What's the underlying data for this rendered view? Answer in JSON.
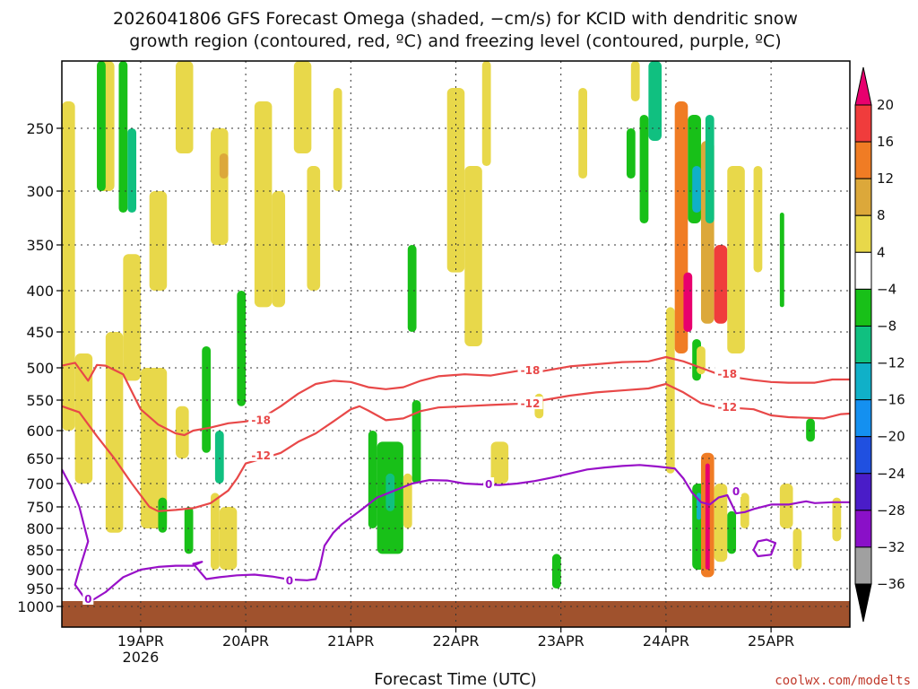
{
  "chart_data": {
    "type": "heatmap",
    "title_line1": "2026041806 GFS Forecast Omega (shaded, −cm/s) for KCID with dendritic snow",
    "title_line2": "growth region (contoured, red, ºC) and freezing level (contoured, purple, ºC)",
    "xlabel": "Forecast Time (UTC)",
    "credit": "coolwx.com/modelts",
    "x_ticks": [
      {
        "label": "19APR",
        "sub": "2026",
        "hour": 18
      },
      {
        "label": "20APR",
        "sub": "",
        "hour": 42
      },
      {
        "label": "21APR",
        "sub": "",
        "hour": 66
      },
      {
        "label": "22APR",
        "sub": "",
        "hour": 90
      },
      {
        "label": "23APR",
        "sub": "",
        "hour": 114
      },
      {
        "label": "24APR",
        "sub": "",
        "hour": 138
      },
      {
        "label": "25APR",
        "sub": "",
        "hour": 162
      }
    ],
    "x_range_hours": [
      0,
      180
    ],
    "y_ticks": [
      250,
      300,
      350,
      400,
      450,
      500,
      550,
      600,
      650,
      700,
      750,
      800,
      850,
      900,
      950,
      1000
    ],
    "y_range_hpa": [
      200,
      1000
    ],
    "colorbar_levels": [
      "20",
      "16",
      "12",
      "8",
      "4",
      "−4",
      "−8",
      "−12",
      "−16",
      "−20",
      "−24",
      "−28",
      "−32",
      "−36"
    ],
    "colorbar_colors": [
      "#e8006e",
      "#f03c3c",
      "#f07c24",
      "#dca83a",
      "#e8d84a",
      "#ffffff",
      "#18c018",
      "#10c080",
      "#10b0c8",
      "#1490f0",
      "#2050e0",
      "#4a1cc8",
      "#8a10c8",
      "#a0a0a0",
      "#000000"
    ],
    "contours": [
      {
        "name": "dgz_-18",
        "label": "-18",
        "color": "#e84848",
        "points": [
          [
            0,
            497
          ],
          [
            3,
            493
          ],
          [
            6,
            520
          ],
          [
            8,
            496
          ],
          [
            10,
            497
          ],
          [
            14,
            510
          ],
          [
            18,
            565
          ],
          [
            22,
            590
          ],
          [
            26,
            605
          ],
          [
            28,
            608
          ],
          [
            30,
            600
          ],
          [
            34,
            595
          ],
          [
            38,
            588
          ],
          [
            42,
            585
          ],
          [
            46,
            578
          ],
          [
            50,
            560
          ],
          [
            54,
            540
          ],
          [
            58,
            525
          ],
          [
            62,
            520
          ],
          [
            66,
            522
          ],
          [
            70,
            530
          ],
          [
            74,
            533
          ],
          [
            78,
            530
          ],
          [
            82,
            520
          ],
          [
            86,
            513
          ],
          [
            92,
            510
          ],
          [
            98,
            512
          ],
          [
            104,
            505
          ],
          [
            110,
            505
          ],
          [
            116,
            498
          ],
          [
            122,
            495
          ],
          [
            128,
            492
          ],
          [
            134,
            491
          ],
          [
            138,
            485
          ],
          [
            142,
            491
          ],
          [
            146,
            500
          ],
          [
            150,
            510
          ],
          [
            154,
            515
          ],
          [
            158,
            519
          ],
          [
            162,
            522
          ],
          [
            166,
            523
          ],
          [
            172,
            523
          ],
          [
            176,
            518
          ],
          [
            180,
            518
          ]
        ]
      },
      {
        "name": "dgz_-12",
        "label": "-12",
        "color": "#e84848",
        "points": [
          [
            0,
            560
          ],
          [
            4,
            570
          ],
          [
            8,
            610
          ],
          [
            12,
            650
          ],
          [
            16,
            700
          ],
          [
            20,
            750
          ],
          [
            22,
            760
          ],
          [
            26,
            757
          ],
          [
            30,
            753
          ],
          [
            34,
            742
          ],
          [
            38,
            715
          ],
          [
            40,
            690
          ],
          [
            42,
            660
          ],
          [
            46,
            650
          ],
          [
            50,
            640
          ],
          [
            54,
            620
          ],
          [
            58,
            605
          ],
          [
            62,
            585
          ],
          [
            66,
            565
          ],
          [
            68,
            560
          ],
          [
            70,
            567
          ],
          [
            74,
            583
          ],
          [
            78,
            580
          ],
          [
            82,
            568
          ],
          [
            86,
            562
          ],
          [
            92,
            560
          ],
          [
            98,
            558
          ],
          [
            104,
            556
          ],
          [
            110,
            550
          ],
          [
            116,
            543
          ],
          [
            122,
            538
          ],
          [
            128,
            535
          ],
          [
            134,
            532
          ],
          [
            138,
            525
          ],
          [
            142,
            538
          ],
          [
            146,
            555
          ],
          [
            150,
            562
          ],
          [
            154,
            563
          ],
          [
            158,
            565
          ],
          [
            162,
            575
          ],
          [
            166,
            578
          ],
          [
            170,
            579
          ],
          [
            174,
            580
          ],
          [
            178,
            573
          ],
          [
            180,
            572
          ]
        ]
      },
      {
        "name": "freezing_level_0",
        "label": "0",
        "color": "#9810c8",
        "points": [
          [
            0,
            672
          ],
          [
            2,
            705
          ],
          [
            4,
            750
          ],
          [
            6,
            830
          ],
          [
            4,
            900
          ],
          [
            3,
            940
          ],
          [
            6,
            990
          ],
          [
            10,
            960
          ],
          [
            14,
            920
          ],
          [
            18,
            900
          ],
          [
            22,
            893
          ],
          [
            26,
            890
          ],
          [
            30,
            890
          ],
          [
            32,
            880
          ],
          [
            30,
            885
          ],
          [
            33,
            925
          ],
          [
            36,
            920
          ],
          [
            40,
            915
          ],
          [
            44,
            913
          ],
          [
            48,
            918
          ],
          [
            52,
            926
          ],
          [
            56,
            928
          ],
          [
            58,
            925
          ],
          [
            59,
            890
          ],
          [
            60,
            840
          ],
          [
            62,
            810
          ],
          [
            64,
            790
          ],
          [
            68,
            760
          ],
          [
            72,
            730
          ],
          [
            76,
            715
          ],
          [
            80,
            700
          ],
          [
            84,
            693
          ],
          [
            88,
            694
          ],
          [
            92,
            700
          ],
          [
            96,
            702
          ],
          [
            100,
            703
          ],
          [
            104,
            700
          ],
          [
            108,
            695
          ],
          [
            112,
            688
          ],
          [
            116,
            680
          ],
          [
            120,
            672
          ],
          [
            124,
            668
          ],
          [
            128,
            665
          ],
          [
            132,
            663
          ],
          [
            136,
            666
          ],
          [
            140,
            670
          ],
          [
            142,
            690
          ],
          [
            144,
            720
          ],
          [
            146,
            740
          ],
          [
            148,
            745
          ],
          [
            150,
            730
          ],
          [
            152,
            725
          ],
          [
            154,
            765
          ],
          [
            156,
            762
          ],
          [
            158,
            755
          ],
          [
            162,
            745
          ],
          [
            166,
            745
          ],
          [
            170,
            738
          ],
          [
            172,
            742
          ],
          [
            176,
            740
          ],
          [
            180,
            740
          ]
        ]
      },
      {
        "name": "freezing_level_0_small",
        "label": "",
        "color": "#9810c8",
        "closed": true,
        "points": [
          [
            159,
            830
          ],
          [
            161,
            826
          ],
          [
            163,
            834
          ],
          [
            162,
            862
          ],
          [
            159,
            866
          ],
          [
            158,
            850
          ]
        ]
      }
    ],
    "contour_labels": [
      {
        "text": "-18",
        "color": "#e84848",
        "hour": 45.5,
        "hpa": 583
      },
      {
        "text": "-18",
        "color": "#e84848",
        "hour": 107,
        "hpa": 504
      },
      {
        "text": "-18",
        "color": "#e84848",
        "hour": 152,
        "hpa": 510
      },
      {
        "text": "-12",
        "color": "#e84848",
        "hour": 45.5,
        "hpa": 645
      },
      {
        "text": "-12",
        "color": "#e84848",
        "hour": 107,
        "hpa": 556
      },
      {
        "text": "-12",
        "color": "#e84848",
        "hour": 152,
        "hpa": 562
      },
      {
        "text": "0",
        "color": "#9810c8",
        "hour": 6,
        "hpa": 980
      },
      {
        "text": "0",
        "color": "#9810c8",
        "hour": 52,
        "hpa": 930
      },
      {
        "text": "0",
        "color": "#9810c8",
        "hour": 97.5,
        "hpa": 702
      },
      {
        "text": "0",
        "color": "#9810c8",
        "hour": 154,
        "hpa": 717
      }
    ],
    "omega_cells": [
      {
        "h0": 0,
        "h1": 3,
        "p0": 230,
        "p1": 600,
        "v": 6
      },
      {
        "h0": 3,
        "h1": 7,
        "p0": 480,
        "p1": 700,
        "v": 5
      },
      {
        "h0": 8,
        "h1": 12,
        "p0": 200,
        "p1": 300,
        "v": 5
      },
      {
        "h0": 8,
        "h1": 10,
        "p0": 200,
        "p1": 300,
        "v": -6
      },
      {
        "h0": 10,
        "h1": 14,
        "p0": 450,
        "p1": 810,
        "v": 5
      },
      {
        "h0": 13,
        "h1": 15,
        "p0": 200,
        "p1": 320,
        "v": -6
      },
      {
        "h0": 15,
        "h1": 17,
        "p0": 250,
        "p1": 320,
        "v": -10
      },
      {
        "h0": 14,
        "h1": 18,
        "p0": 360,
        "p1": 520,
        "v": 5
      },
      {
        "h0": 18,
        "h1": 24,
        "p0": 500,
        "p1": 800,
        "v": 5
      },
      {
        "h0": 22,
        "h1": 24,
        "p0": 730,
        "p1": 810,
        "v": -6
      },
      {
        "h0": 20,
        "h1": 24,
        "p0": 300,
        "p1": 400,
        "v": 5
      },
      {
        "h0": 26,
        "h1": 30,
        "p0": 200,
        "p1": 270,
        "v": 5
      },
      {
        "h0": 26,
        "h1": 29,
        "p0": 560,
        "p1": 650,
        "v": 5
      },
      {
        "h0": 28,
        "h1": 30,
        "p0": 750,
        "p1": 860,
        "v": -6
      },
      {
        "h0": 32,
        "h1": 34,
        "p0": 470,
        "p1": 640,
        "v": -6
      },
      {
        "h0": 34,
        "h1": 38,
        "p0": 250,
        "p1": 350,
        "v": 6
      },
      {
        "h0": 36,
        "h1": 38,
        "p0": 270,
        "p1": 290,
        "v": 11
      },
      {
        "h0": 35,
        "h1": 37,
        "p0": 600,
        "p1": 700,
        "v": -10
      },
      {
        "h0": 34,
        "h1": 36,
        "p0": 720,
        "p1": 900,
        "v": 5
      },
      {
        "h0": 36,
        "h1": 40,
        "p0": 750,
        "p1": 900,
        "v": 5
      },
      {
        "h0": 40,
        "h1": 42,
        "p0": 400,
        "p1": 560,
        "v": -6
      },
      {
        "h0": 44,
        "h1": 48,
        "p0": 230,
        "p1": 420,
        "v": 5
      },
      {
        "h0": 48,
        "h1": 51,
        "p0": 300,
        "p1": 420,
        "v": 5
      },
      {
        "h0": 53,
        "h1": 57,
        "p0": 200,
        "p1": 270,
        "v": 5
      },
      {
        "h0": 56,
        "h1": 59,
        "p0": 280,
        "p1": 400,
        "v": 5
      },
      {
        "h0": 62,
        "h1": 64,
        "p0": 220,
        "p1": 300,
        "v": 5
      },
      {
        "h0": 70,
        "h1": 72,
        "p0": 600,
        "p1": 800,
        "v": -6
      },
      {
        "h0": 72,
        "h1": 78,
        "p0": 620,
        "p1": 860,
        "v": -6
      },
      {
        "h0": 74,
        "h1": 76,
        "p0": 680,
        "p1": 760,
        "v": -10
      },
      {
        "h0": 78,
        "h1": 80,
        "p0": 680,
        "p1": 800,
        "v": 5
      },
      {
        "h0": 80,
        "h1": 82,
        "p0": 550,
        "p1": 700,
        "v": -6
      },
      {
        "h0": 79,
        "h1": 81,
        "p0": 350,
        "p1": 450,
        "v": -6
      },
      {
        "h0": 88,
        "h1": 92,
        "p0": 220,
        "p1": 380,
        "v": 5
      },
      {
        "h0": 92,
        "h1": 96,
        "p0": 280,
        "p1": 470,
        "v": 6
      },
      {
        "h0": 96,
        "h1": 98,
        "p0": 200,
        "p1": 280,
        "v": 5
      },
      {
        "h0": 98,
        "h1": 102,
        "p0": 620,
        "p1": 700,
        "v": 5
      },
      {
        "h0": 108,
        "h1": 110,
        "p0": 540,
        "p1": 580,
        "v": 5
      },
      {
        "h0": 112,
        "h1": 114,
        "p0": 860,
        "p1": 950,
        "v": -6
      },
      {
        "h0": 118,
        "h1": 120,
        "p0": 220,
        "p1": 290,
        "v": 5
      },
      {
        "h0": 130,
        "h1": 132,
        "p0": 200,
        "p1": 230,
        "v": 5
      },
      {
        "h0": 129,
        "h1": 131,
        "p0": 250,
        "p1": 290,
        "v": -6
      },
      {
        "h0": 134,
        "h1": 137,
        "p0": 200,
        "p1": 260,
        "v": -10
      },
      {
        "h0": 132,
        "h1": 134,
        "p0": 240,
        "p1": 330,
        "v": -6
      },
      {
        "h0": 138,
        "h1": 140,
        "p0": 420,
        "p1": 680,
        "v": 5
      },
      {
        "h0": 140,
        "h1": 143,
        "p0": 230,
        "p1": 480,
        "v": 14
      },
      {
        "h0": 142,
        "h1": 144,
        "p0": 380,
        "p1": 450,
        "v": 20
      },
      {
        "h0": 143,
        "h1": 146,
        "p0": 240,
        "p1": 330,
        "v": -6
      },
      {
        "h0": 144,
        "h1": 146,
        "p0": 280,
        "p1": 320,
        "v": -12
      },
      {
        "h0": 146,
        "h1": 149,
        "p0": 260,
        "p1": 440,
        "v": 8
      },
      {
        "h0": 149,
        "h1": 152,
        "p0": 350,
        "p1": 440,
        "v": 18
      },
      {
        "h0": 147,
        "h1": 149,
        "p0": 240,
        "p1": 330,
        "v": -10
      },
      {
        "h0": 152,
        "h1": 156,
        "p0": 280,
        "p1": 480,
        "v": 6
      },
      {
        "h0": 158,
        "h1": 160,
        "p0": 280,
        "p1": 380,
        "v": 5
      },
      {
        "h0": 144,
        "h1": 146,
        "p0": 460,
        "p1": 520,
        "v": -6
      },
      {
        "h0": 145,
        "h1": 147,
        "p0": 470,
        "p1": 510,
        "v": 6
      },
      {
        "h0": 144,
        "h1": 147,
        "p0": 700,
        "p1": 900,
        "v": -6
      },
      {
        "h0": 145,
        "h1": 146,
        "p0": 720,
        "p1": 780,
        "v": -12
      },
      {
        "h0": 146,
        "h1": 149,
        "p0": 640,
        "p1": 920,
        "v": 12
      },
      {
        "h0": 147,
        "h1": 148,
        "p0": 660,
        "p1": 900,
        "v": 20
      },
      {
        "h0": 149,
        "h1": 152,
        "p0": 700,
        "p1": 880,
        "v": 5
      },
      {
        "h0": 152,
        "h1": 154,
        "p0": 760,
        "p1": 860,
        "v": -6
      },
      {
        "h0": 155,
        "h1": 157,
        "p0": 720,
        "p1": 800,
        "v": 5
      },
      {
        "h0": 164,
        "h1": 167,
        "p0": 700,
        "p1": 800,
        "v": 5
      },
      {
        "h0": 167,
        "h1": 169,
        "p0": 800,
        "p1": 900,
        "v": 5
      },
      {
        "h0": 170,
        "h1": 172,
        "p0": 580,
        "p1": 620,
        "v": -6
      },
      {
        "h0": 176,
        "h1": 178,
        "p0": 730,
        "p1": 830,
        "v": 5
      },
      {
        "h0": 164,
        "h1": 165,
        "p0": 320,
        "p1": 420,
        "v": -6
      }
    ]
  }
}
